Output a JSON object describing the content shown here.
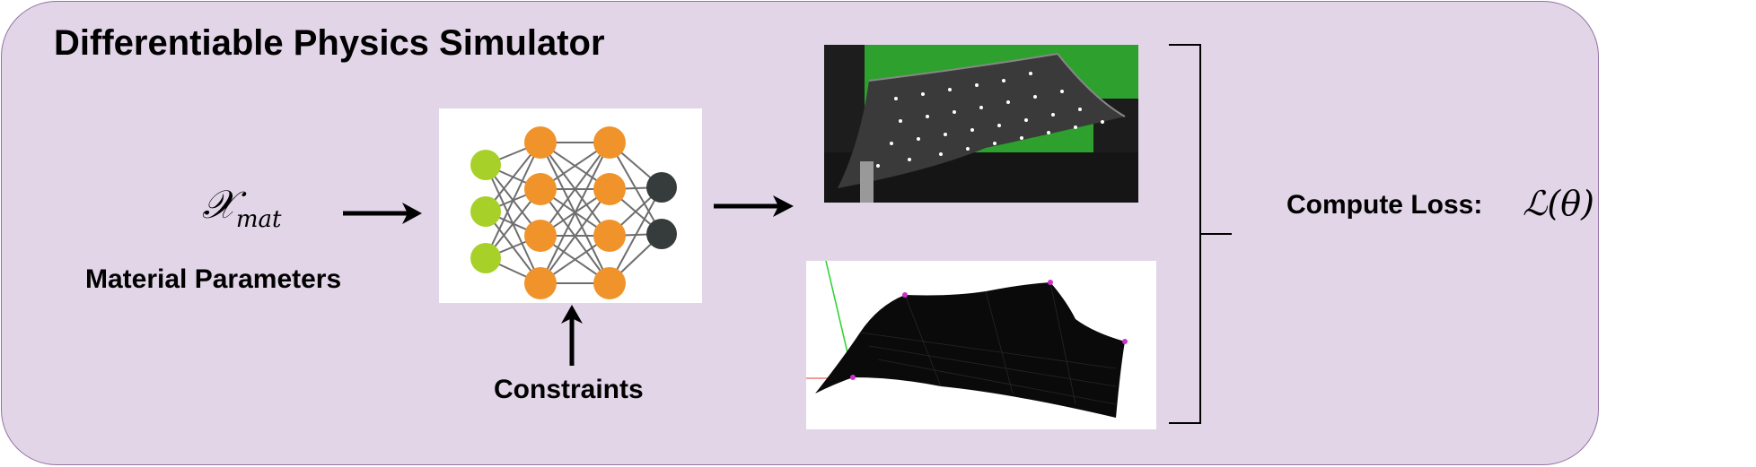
{
  "diagram": {
    "title": "Differentiable Physics Simulator",
    "input_symbol": {
      "base": "𝒳",
      "subscript": "mat"
    },
    "input_label": "Material Parameters",
    "constraints_label": "Constraints",
    "loss_label": "Compute Loss:",
    "loss_symbol": {
      "script": "ℒ",
      "argument": "(θ)"
    },
    "colors": {
      "panel_fill": "#e1d5e7",
      "panel_border": "#9673a6",
      "nn_input": "#a7d129",
      "nn_hidden": "#f0932b",
      "nn_output": "#363b3b",
      "greenscreen": "#2ea02e"
    },
    "images": {
      "network": "neural-network-icon",
      "photo": "real-cloth-photo",
      "render": "simulated-cloth-mesh"
    }
  }
}
